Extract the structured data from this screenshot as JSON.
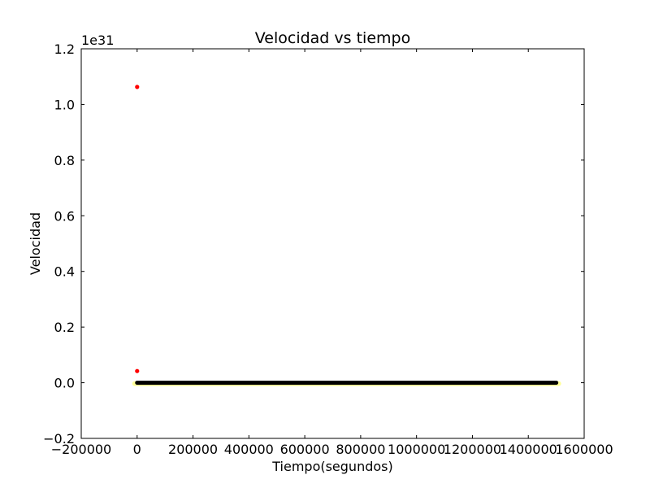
{
  "chart_data": {
    "type": "scatter",
    "title": "Velocidad vs tiempo",
    "xlabel": "Tiempo(segundos)",
    "ylabel": "Velocidad",
    "y_offset_text": "1e31",
    "xlim": [
      -200000,
      1600000
    ],
    "ylim": [
      -0.2,
      1.2
    ],
    "x_ticks": [
      -200000,
      0,
      200000,
      400000,
      600000,
      800000,
      1000000,
      1200000,
      1400000,
      1600000
    ],
    "x_tick_labels": [
      "−200000",
      "0",
      "200000",
      "400000",
      "600000",
      "800000",
      "1000000",
      "1200000",
      "1400000",
      "1600000"
    ],
    "y_ticks": [
      -0.2,
      0.0,
      0.2,
      0.4,
      0.6,
      0.8,
      1.0,
      1.2
    ],
    "y_tick_labels": [
      "−0.2",
      "0.0",
      "0.2",
      "0.4",
      "0.6",
      "0.8",
      "1.0",
      "1.2"
    ],
    "grid": false,
    "legend": false,
    "series": [
      {
        "color": "#ff0000",
        "x": [
          0,
          0
        ],
        "y": [
          1.063,
          0.042
        ]
      },
      {
        "color": "#000000",
        "band_fill": "#ffff99",
        "x": [
          0,
          1500000
        ],
        "y": [
          0.0,
          0.0
        ]
      }
    ]
  }
}
